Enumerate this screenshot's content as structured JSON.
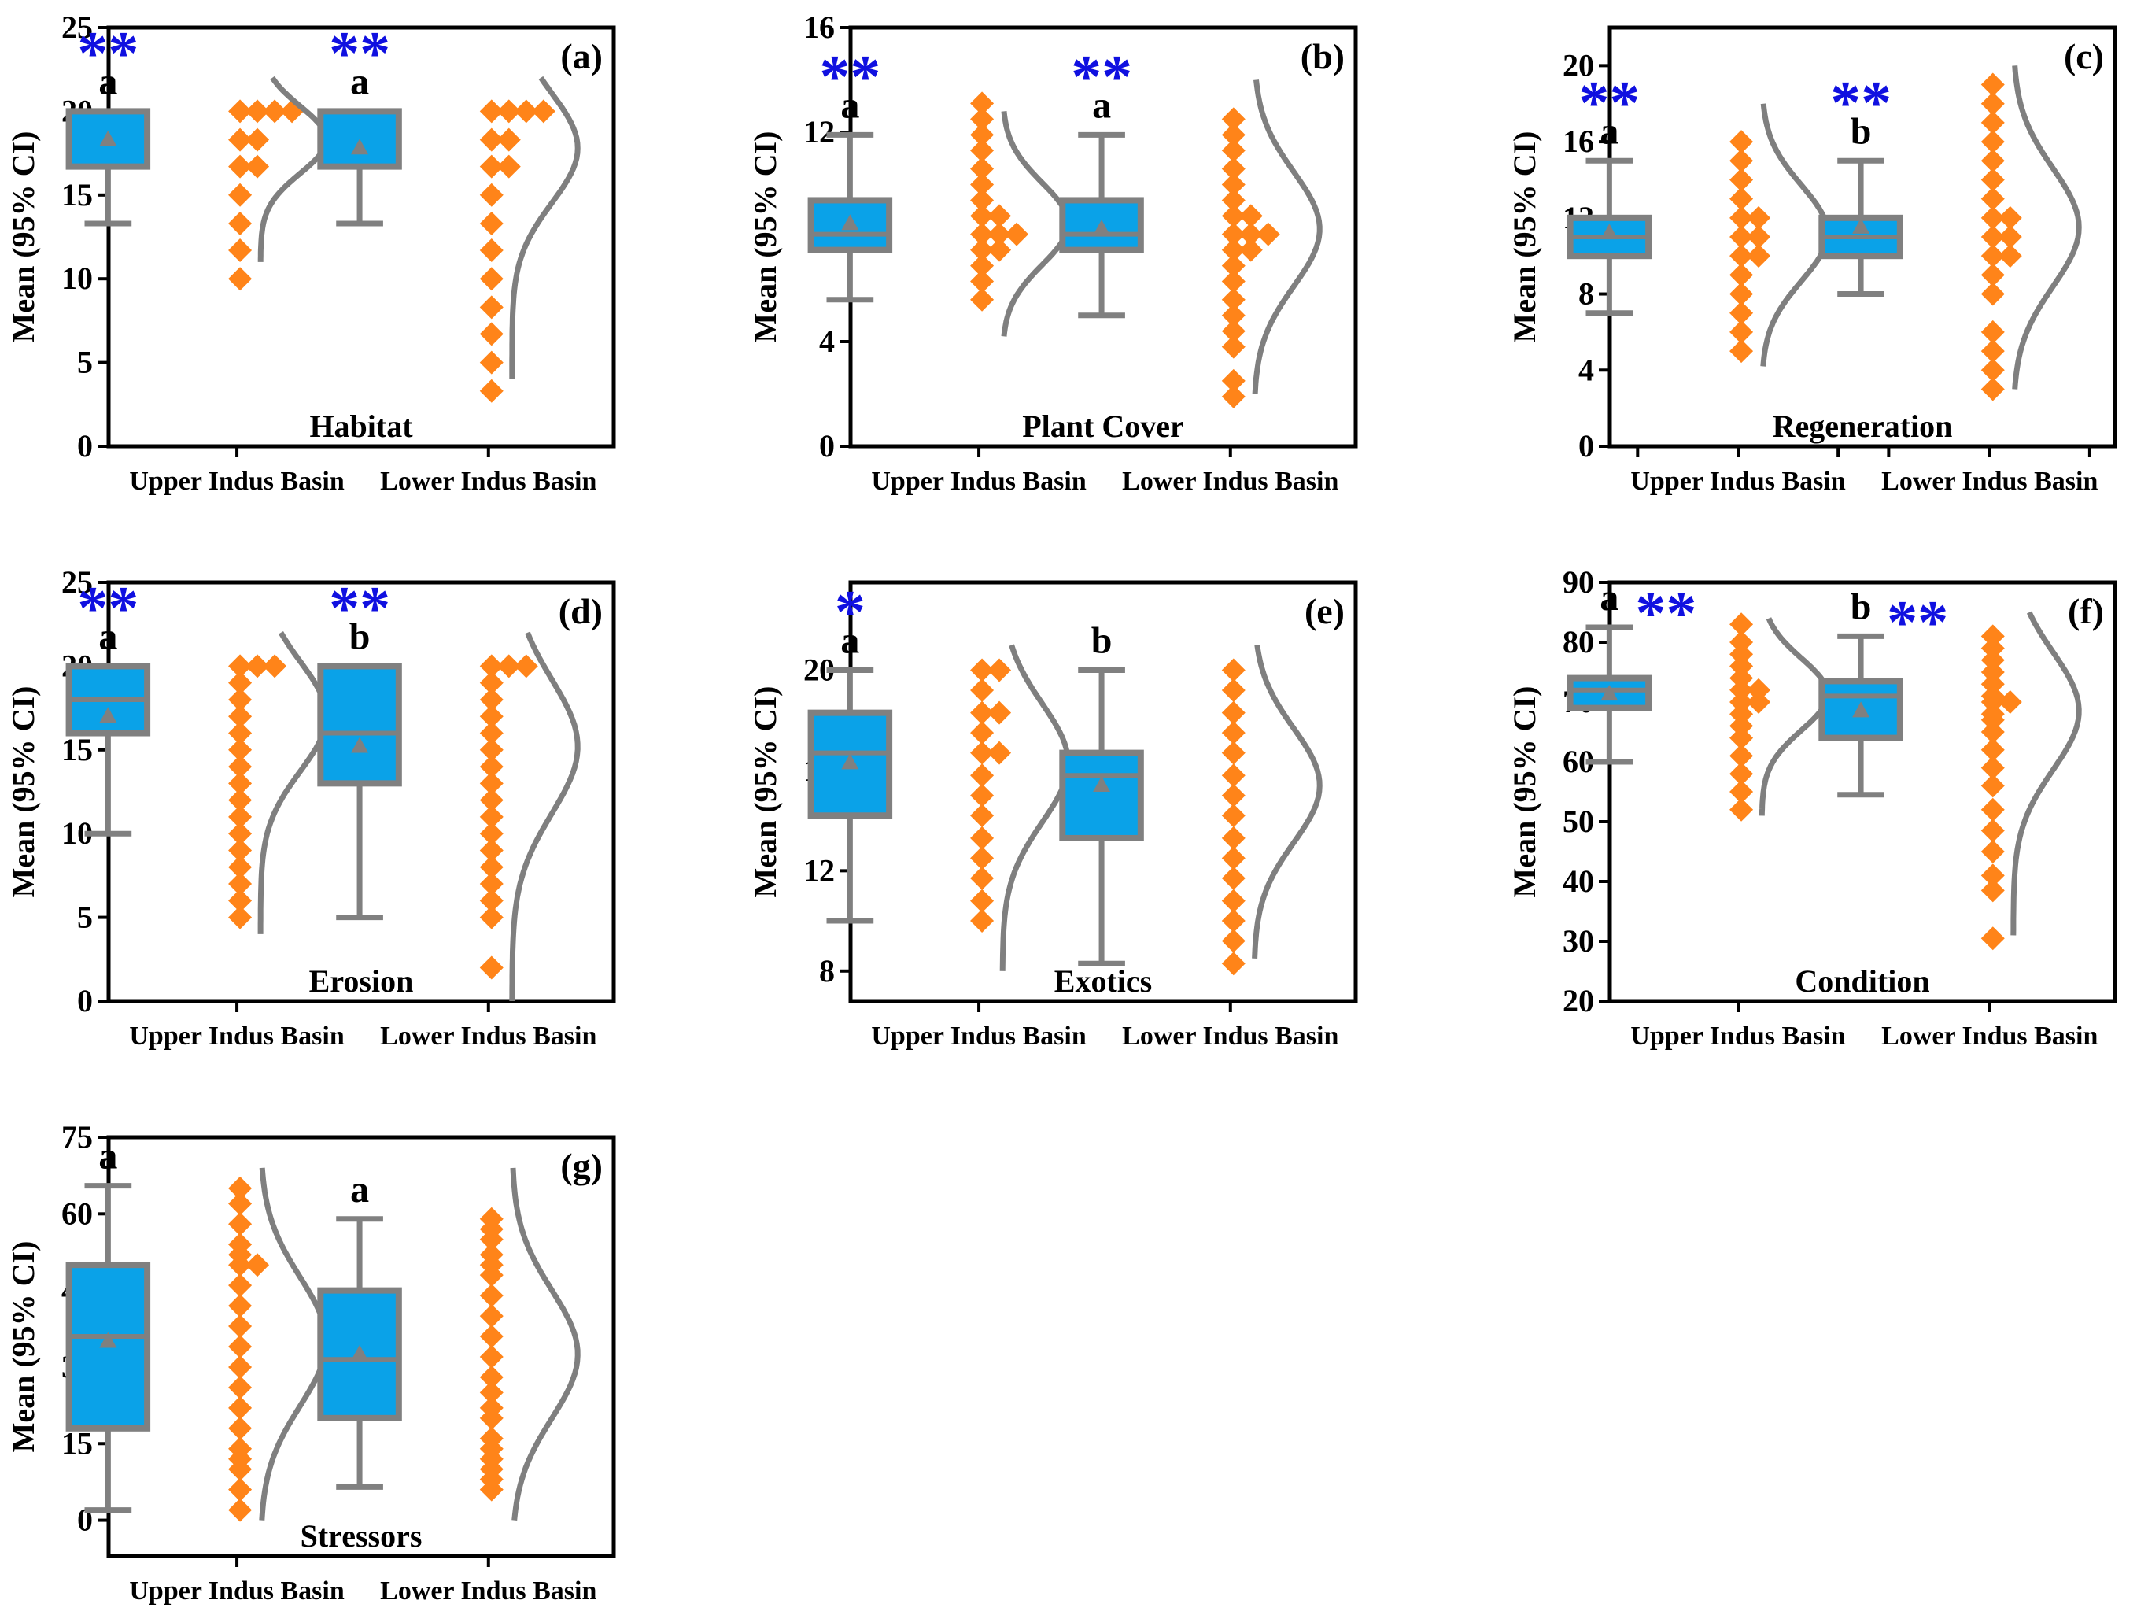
{
  "figure": {
    "background": "#ffffff"
  },
  "colors": {
    "box_fill": "#0aa2e8",
    "box_stroke": "#808080",
    "points": "#ff8419",
    "curve": "#7f7f7f",
    "star": "#1010e0",
    "letter": "#000000",
    "axis": "#000000"
  },
  "chart_data": [
    {
      "type": "box",
      "panel": "(a)",
      "title": "Habitat",
      "ylabel": "Mean (95% CI)",
      "categories": [
        "Upper Indus Basin",
        "Lower Indus Basin"
      ],
      "ylim": [
        0,
        25
      ],
      "yticks": [
        0,
        5,
        10,
        15,
        20,
        25
      ],
      "minor_ticks": false,
      "groups": [
        {
          "min": 13.3,
          "q1": 16.7,
          "median": 20,
          "q3": 20,
          "max": 20,
          "mean": 18.3,
          "letter": "a",
          "stars": "**",
          "star_pos": "above",
          "points": [
            10,
            11.7,
            13.3,
            15,
            16.7,
            16.7,
            18.3,
            18.3,
            20,
            20,
            20,
            20
          ],
          "curve_range": [
            11,
            22
          ]
        },
        {
          "min": 13.3,
          "q1": 16.7,
          "median": 20,
          "q3": 20,
          "max": 20,
          "mean": 17.8,
          "letter": "a",
          "stars": "**",
          "star_pos": "above",
          "points": [
            3.3,
            5,
            6.7,
            8.3,
            10,
            11.7,
            13.3,
            15,
            16.7,
            16.7,
            18.3,
            18.3,
            20,
            20,
            20,
            20
          ],
          "curve_range": [
            4,
            22
          ]
        }
      ]
    },
    {
      "type": "box",
      "panel": "(b)",
      "title": "Plant Cover",
      "ylabel": "Mean (95% CI)",
      "categories": [
        "Upper Indus Basin",
        "Lower Indus Basin"
      ],
      "ylim": [
        0,
        16
      ],
      "yticks": [
        0,
        4,
        8,
        12,
        16
      ],
      "minor_ticks": false,
      "groups": [
        {
          "min": 5.6,
          "q1": 7.5,
          "median": 8.1,
          "q3": 9.4,
          "max": 11.9,
          "mean": 8.5,
          "letter": "a",
          "stars": "**",
          "star_pos": "above",
          "points": [
            5.6,
            6.3,
            6.9,
            7.5,
            7.5,
            8.1,
            8.1,
            8.1,
            8.8,
            8.8,
            9.4,
            10,
            10.6,
            11.3,
            11.9,
            12.5,
            13.1
          ],
          "curve_range": [
            4.2,
            12.8
          ]
        },
        {
          "min": 5,
          "q1": 7.5,
          "median": 8.1,
          "q3": 9.4,
          "max": 11.9,
          "mean": 8.3,
          "letter": "a",
          "stars": "**",
          "star_pos": "above",
          "points": [
            1.9,
            2.5,
            3.8,
            4.4,
            5,
            5.6,
            6.3,
            6.9,
            7.5,
            7.5,
            8.1,
            8.1,
            8.1,
            8.8,
            8.8,
            9.4,
            10,
            10.6,
            11.3,
            11.9,
            12.5
          ],
          "curve_range": [
            2,
            14
          ]
        }
      ]
    },
    {
      "type": "box",
      "panel": "(c)",
      "title": "Regeneration",
      "ylabel": "Mean (95% CI)",
      "categories": [
        "Upper Indus Basin",
        "Lower Indus Basin"
      ],
      "ylim": [
        0,
        22
      ],
      "yticks": [
        0,
        4,
        8,
        12,
        16,
        20
      ],
      "minor_ticks": true,
      "groups": [
        {
          "min": 7,
          "q1": 10,
          "median": 11,
          "q3": 12,
          "max": 15,
          "mean": 11.2,
          "letter": "a",
          "stars": "**",
          "star_pos": "above",
          "points": [
            5,
            6,
            7,
            8,
            9,
            10,
            10,
            11,
            11,
            12,
            12,
            13,
            14,
            15,
            16
          ],
          "curve_range": [
            4.2,
            18
          ]
        },
        {
          "min": 8,
          "q1": 10,
          "median": 11,
          "q3": 12,
          "max": 15,
          "mean": 11.5,
          "letter": "b",
          "stars": "**",
          "star_pos": "above",
          "points": [
            3,
            4,
            5,
            6,
            8,
            9,
            10,
            10,
            11,
            11,
            12,
            12,
            13,
            14,
            15,
            16,
            17,
            18,
            19
          ],
          "curve_range": [
            3,
            20
          ]
        }
      ]
    },
    {
      "type": "box",
      "panel": "(d)",
      "title": "Erosion",
      "ylabel": "Mean (95% CI)",
      "categories": [
        "Upper Indus Basin",
        "Lower Indus Basin"
      ],
      "ylim": [
        0,
        25
      ],
      "yticks": [
        0,
        5,
        10,
        15,
        20,
        25
      ],
      "minor_ticks": false,
      "groups": [
        {
          "min": 10,
          "q1": 16,
          "median": 18,
          "q3": 20,
          "max": 20,
          "mean": 17,
          "letter": "a",
          "stars": "**",
          "star_pos": "above",
          "points": [
            5,
            6,
            7,
            8,
            9,
            10,
            11,
            12,
            13,
            14,
            15,
            16,
            17,
            18,
            19,
            20,
            20,
            20
          ],
          "curve_range": [
            4,
            22
          ]
        },
        {
          "min": 5,
          "q1": 13,
          "median": 16,
          "q3": 20,
          "max": 20,
          "mean": 15.2,
          "letter": "b",
          "stars": "**",
          "star_pos": "above",
          "points": [
            2,
            5,
            6,
            7,
            8,
            9,
            10,
            11,
            12,
            13,
            14,
            15,
            16,
            17,
            18,
            19,
            20,
            20,
            20
          ],
          "curve_range": [
            0,
            22
          ]
        }
      ]
    },
    {
      "type": "box",
      "panel": "(e)",
      "title": "Exotics",
      "ylabel": "Mean (95% CI)",
      "categories": [
        "Upper Indus Basin",
        "Lower Indus Basin"
      ],
      "ylim": [
        6.8,
        23.5
      ],
      "yticks": [
        8,
        12,
        16,
        20
      ],
      "minor_ticks": false,
      "groups": [
        {
          "min": 10,
          "q1": 14.2,
          "median": 16.7,
          "q3": 18.3,
          "max": 20,
          "mean": 16.3,
          "letter": "a",
          "stars": "*",
          "star_pos": "above",
          "points": [
            10,
            10.8,
            11.7,
            12.5,
            13.3,
            14.2,
            15,
            15.8,
            16.7,
            16.7,
            17.5,
            18.3,
            18.3,
            19.2,
            20,
            20
          ],
          "curve_range": [
            8,
            21
          ]
        },
        {
          "min": 8.3,
          "q1": 13.3,
          "median": 15.8,
          "q3": 16.7,
          "max": 20,
          "mean": 15.4,
          "letter": "b",
          "stars": "",
          "star_pos": "above",
          "points": [
            8.3,
            9.2,
            10,
            10.8,
            11.7,
            12.5,
            13.3,
            14.2,
            15,
            15.8,
            16.7,
            17.5,
            18.3,
            19.2,
            20
          ],
          "curve_range": [
            8.5,
            21
          ]
        }
      ]
    },
    {
      "type": "box",
      "panel": "(f)",
      "title": "Condition",
      "ylabel": "Mean (95% CI)",
      "categories": [
        "Upper Indus Basin",
        "Lower Indus Basin"
      ],
      "ylim": [
        20,
        90
      ],
      "yticks": [
        20,
        30,
        40,
        50,
        60,
        70,
        80,
        90
      ],
      "minor_ticks": false,
      "groups": [
        {
          "min": 60,
          "q1": 69,
          "median": 72,
          "q3": 74,
          "max": 82.5,
          "mean": 71.3,
          "letter": "a",
          "stars": "**",
          "star_pos": "right",
          "points": [
            52,
            55,
            58,
            61,
            64,
            66,
            68,
            70,
            70,
            72,
            72,
            74,
            76,
            78,
            80,
            83
          ],
          "curve_range": [
            51,
            84
          ]
        },
        {
          "min": 54.5,
          "q1": 64,
          "median": 71,
          "q3": 73.5,
          "max": 81,
          "mean": 68.5,
          "letter": "b",
          "stars": "**",
          "star_pos": "right",
          "points": [
            30.5,
            38.5,
            41,
            45,
            48.5,
            52,
            56,
            59,
            62,
            65,
            67,
            68,
            70,
            70,
            71,
            73,
            75,
            77,
            79,
            81
          ],
          "curve_range": [
            31,
            85
          ]
        }
      ]
    },
    {
      "type": "box",
      "panel": "(g)",
      "title": "Stressors",
      "ylabel": "Mean (95% CI)",
      "categories": [
        "Upper Indus Basin",
        "Lower Indus Basin"
      ],
      "ylim": [
        -7,
        75
      ],
      "yticks": [
        0,
        15,
        30,
        45,
        60,
        75
      ],
      "minor_ticks": false,
      "groups": [
        {
          "min": 2,
          "q1": 18,
          "median": 36,
          "q3": 50,
          "max": 65.5,
          "mean": 35,
          "letter": "a",
          "stars": "",
          "star_pos": "above",
          "points": [
            2,
            6,
            10,
            12,
            14,
            18,
            22,
            26,
            30,
            34,
            38,
            42,
            46,
            50,
            50,
            52,
            54,
            58,
            62,
            65
          ],
          "curve_range": [
            0,
            69
          ]
        },
        {
          "min": 6.5,
          "q1": 20,
          "median": 31.5,
          "q3": 45,
          "max": 59,
          "mean": 32.5,
          "letter": "a",
          "stars": "",
          "star_pos": "above",
          "points": [
            6,
            8,
            10,
            12,
            14,
            16,
            20,
            22,
            25,
            28,
            32,
            36,
            40,
            44,
            48,
            50,
            52,
            55,
            57,
            59
          ],
          "curve_range": [
            0,
            69
          ]
        }
      ]
    }
  ]
}
